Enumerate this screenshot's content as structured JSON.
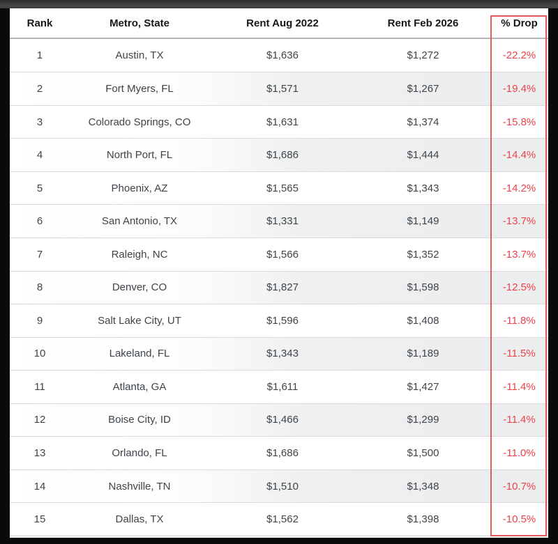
{
  "colors": {
    "background": "#0a0a0b",
    "topbar": "#3d3d40",
    "panel": "#ffffff",
    "header_text": "#16181c",
    "body_text": "#3e4449",
    "drop_text": "#ee424b",
    "highlight_border": "#e6595f",
    "row_stripe": "#ecedee",
    "row_divider": "#d9dbdd"
  },
  "chart_data": {
    "type": "table",
    "title": "",
    "columns": [
      "Rank",
      "Metro, State",
      "Rent Aug 2022",
      "Rent Feb 2026",
      "% Drop"
    ],
    "column_keys": [
      "rank",
      "metro",
      "rent-aug-2022",
      "rent-feb-2026",
      "pct-drop"
    ],
    "highlighted_column": "% Drop",
    "rows": [
      [
        "1",
        "Austin, TX",
        "$1,636",
        "$1,272",
        "-22.2%"
      ],
      [
        "2",
        "Fort Myers, FL",
        "$1,571",
        "$1,267",
        "-19.4%"
      ],
      [
        "3",
        "Colorado Springs, CO",
        "$1,631",
        "$1,374",
        "-15.8%"
      ],
      [
        "4",
        "North Port, FL",
        "$1,686",
        "$1,444",
        "-14.4%"
      ],
      [
        "5",
        "Phoenix, AZ",
        "$1,565",
        "$1,343",
        "-14.2%"
      ],
      [
        "6",
        "San Antonio, TX",
        "$1,331",
        "$1,149",
        "-13.7%"
      ],
      [
        "7",
        "Raleigh, NC",
        "$1,566",
        "$1,352",
        "-13.7%"
      ],
      [
        "8",
        "Denver, CO",
        "$1,827",
        "$1,598",
        "-12.5%"
      ],
      [
        "9",
        "Salt Lake City, UT",
        "$1,596",
        "$1,408",
        "-11.8%"
      ],
      [
        "10",
        "Lakeland, FL",
        "$1,343",
        "$1,189",
        "-11.5%"
      ],
      [
        "11",
        "Atlanta, GA",
        "$1,611",
        "$1,427",
        "-11.4%"
      ],
      [
        "12",
        "Boise City, ID",
        "$1,466",
        "$1,299",
        "-11.4%"
      ],
      [
        "13",
        "Orlando, FL",
        "$1,686",
        "$1,500",
        "-11.0%"
      ],
      [
        "14",
        "Nashville, TN",
        "$1,510",
        "$1,348",
        "-10.7%"
      ],
      [
        "15",
        "Dallas, TX",
        "$1,562",
        "$1,398",
        "-10.5%"
      ]
    ]
  }
}
